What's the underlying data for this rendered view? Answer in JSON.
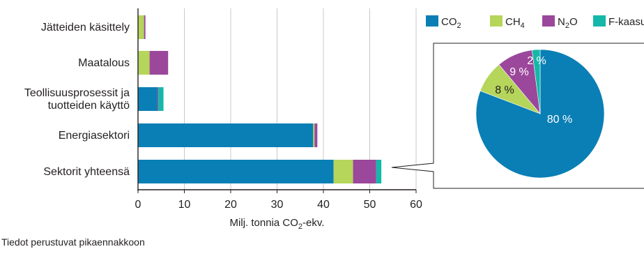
{
  "chart_data": [
    {
      "type": "bar",
      "stacked": true,
      "orientation": "horizontal",
      "categories": [
        "Jätteiden käsittely",
        "Maatalous",
        "Teollisuusprosessit ja tuotteiden käyttö",
        "Energiasektori",
        "Sektorit yhteensä"
      ],
      "category_lines": [
        [
          "Jätteiden käsittely"
        ],
        [
          "Maatalous"
        ],
        [
          "Teollisuusprosessit ja",
          "tuotteiden käyttö"
        ],
        [
          "Energiasektori"
        ],
        [
          "Sektorit yhteensä"
        ]
      ],
      "series": [
        {
          "name": "CO₂",
          "color": "#0a7fb5",
          "values": [
            0.0,
            0.1,
            4.2,
            37.8,
            42.2
          ]
        },
        {
          "name": "CH₄",
          "color": "#b5d55b",
          "values": [
            1.3,
            2.4,
            0.0,
            0.3,
            4.2
          ]
        },
        {
          "name": "N₂O",
          "color": "#9b479b",
          "values": [
            0.3,
            4.0,
            0.2,
            0.6,
            5.0
          ]
        },
        {
          "name": "F-kaasut",
          "color": "#14b8a8",
          "values": [
            0.0,
            0.0,
            1.1,
            0.0,
            1.1
          ]
        }
      ],
      "xlim": [
        0,
        60
      ],
      "xticks": [
        "0",
        "10",
        "20",
        "30",
        "40",
        "50",
        "60"
      ],
      "xlabel_parts": [
        "Milj. tonnia CO",
        "2",
        "-ekv."
      ],
      "grid": "vertical"
    },
    {
      "type": "pie",
      "subset_of": "Sektorit yhteensä",
      "slices": [
        {
          "label": "80 %",
          "value": 80,
          "color": "#0a7fb5",
          "text_color": "#ffffff"
        },
        {
          "label": "8 %",
          "value": 8,
          "color": "#b5d55b",
          "text_color": "#231f20"
        },
        {
          "label": "9 %",
          "value": 9,
          "color": "#9b479b",
          "text_color": "#ffffff"
        },
        {
          "label": "2 %",
          "value": 2,
          "color": "#14b8a8",
          "text_color": "#ffffff"
        }
      ],
      "legend": [
        {
          "base": "CO",
          "sub": "2",
          "color": "#0a7fb5"
        },
        {
          "base": "CH",
          "sub": "4",
          "color": "#b5d55b"
        },
        {
          "base": "N",
          "sub": "2",
          "tail": "O",
          "color": "#9b479b"
        },
        {
          "base": "F-kaasut",
          "color": "#14b8a8"
        }
      ]
    }
  ],
  "footnote": "Tiedot perustuvat pikaennakkoon"
}
